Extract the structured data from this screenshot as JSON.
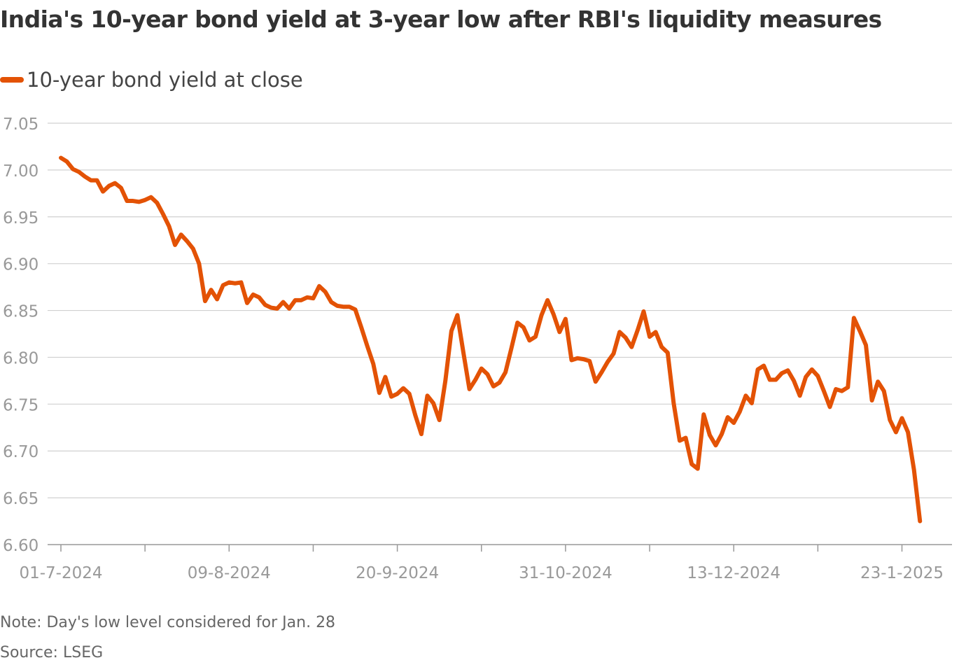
{
  "title": "India's 10-year bond yield at 3-year low after RBI's liquidity measures",
  "legend": {
    "label": "10-year bond yield at close"
  },
  "note": "Note: Day's low level considered for Jan. 28",
  "source": "Source: LSEG",
  "colors": {
    "line": "#e35205",
    "grid": "#d0d0d0",
    "axis": "#999999",
    "tick_label": "#999999"
  },
  "chart_data": {
    "type": "line",
    "title": "India's 10-year bond yield at 3-year low after RBI's liquidity measures",
    "xlabel": "",
    "ylabel": "",
    "ylim": [
      6.6,
      7.05
    ],
    "yticks": [
      "6.60",
      "6.65",
      "6.70",
      "6.75",
      "6.80",
      "6.85",
      "6.90",
      "6.95",
      "7.00",
      "7.05"
    ],
    "xlim": [
      0,
      146
    ],
    "xtick_positions": [
      0,
      14,
      28,
      42,
      56,
      70,
      84,
      98,
      112,
      126,
      140
    ],
    "xtick_labels": [
      {
        "index": 0,
        "label": "01-7-2024"
      },
      {
        "index": 28,
        "label": "09-8-2024"
      },
      {
        "index": 56,
        "label": "20-9-2024"
      },
      {
        "index": 84,
        "label": "31-10-2024"
      },
      {
        "index": 112,
        "label": "13-12-2024"
      },
      {
        "index": 140,
        "label": "23-1-2025"
      }
    ],
    "grid": true,
    "series": [
      {
        "name": "10-year bond yield at close",
        "values": [
          7.013,
          7.009,
          7.001,
          6.998,
          6.993,
          6.989,
          6.989,
          6.977,
          6.983,
          6.986,
          6.981,
          6.967,
          6.967,
          6.966,
          6.968,
          6.971,
          6.965,
          6.953,
          6.94,
          6.92,
          6.931,
          6.924,
          6.916,
          6.9,
          6.86,
          6.872,
          6.862,
          6.877,
          6.88,
          6.879,
          6.88,
          6.858,
          6.867,
          6.864,
          6.856,
          6.853,
          6.852,
          6.859,
          6.852,
          6.861,
          6.861,
          6.864,
          6.863,
          6.876,
          6.87,
          6.859,
          6.855,
          6.854,
          6.854,
          6.851,
          6.832,
          6.812,
          6.793,
          6.762,
          6.779,
          6.758,
          6.761,
          6.767,
          6.761,
          6.738,
          6.718,
          6.759,
          6.751,
          6.733,
          6.775,
          6.828,
          6.845,
          6.805,
          6.766,
          6.776,
          6.788,
          6.782,
          6.769,
          6.773,
          6.784,
          6.81,
          6.837,
          6.832,
          6.818,
          6.822,
          6.845,
          6.861,
          6.846,
          6.827,
          6.841,
          6.797,
          6.799,
          6.798,
          6.796,
          6.774,
          6.784,
          6.795,
          6.804,
          6.827,
          6.821,
          6.811,
          6.829,
          6.849,
          6.822,
          6.827,
          6.811,
          6.805,
          6.751,
          6.711,
          6.714,
          6.686,
          6.681,
          6.739,
          6.717,
          6.706,
          6.718,
          6.736,
          6.73,
          6.742,
          6.759,
          6.751,
          6.787,
          6.791,
          6.776,
          6.776,
          6.783,
          6.786,
          6.775,
          6.759,
          6.779,
          6.787,
          6.78,
          6.764,
          6.747,
          6.766,
          6.764,
          6.768,
          6.842,
          6.828,
          6.813,
          6.754,
          6.774,
          6.764,
          6.733,
          6.72,
          6.735,
          6.72,
          6.68,
          6.625
        ]
      }
    ]
  }
}
